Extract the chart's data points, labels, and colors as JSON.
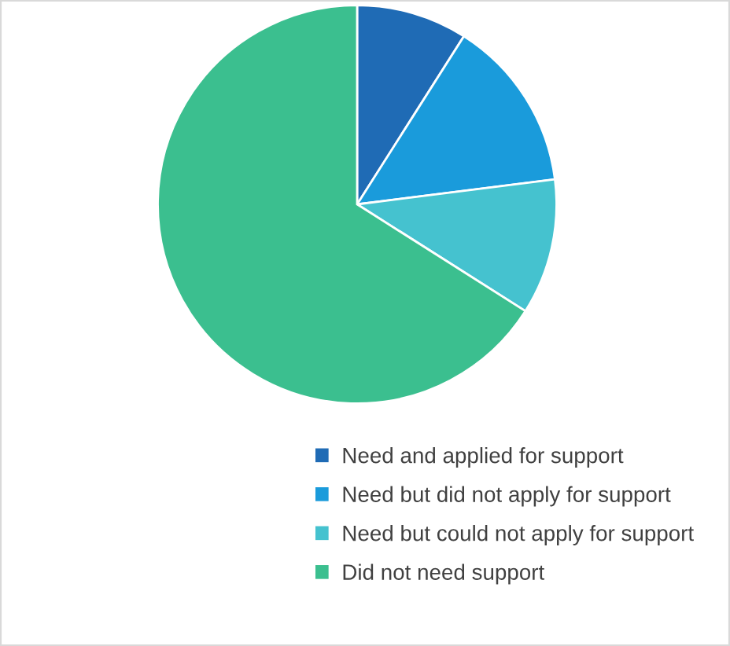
{
  "chart_data": {
    "type": "pie",
    "categories": [
      "Need and applied for support",
      "Need but did not apply for support",
      "Need but could not apply for support",
      "Did not need support"
    ],
    "values": [
      9,
      14,
      11,
      66
    ],
    "colors": [
      "#1f6bb5",
      "#1a9bdb",
      "#45c2cf",
      "#3bbf8f"
    ],
    "legend": "bottom"
  }
}
